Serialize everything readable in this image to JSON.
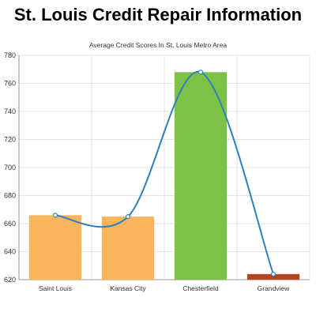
{
  "page": {
    "title": "St. Louis Credit Repair Information"
  },
  "chart_data": {
    "type": "bar",
    "title": "Average Credit Scores In St. Louis Metro Area",
    "xlabel": "",
    "ylabel": "",
    "categories": [
      "Saint Louis",
      "Kansas City",
      "Chesterfield",
      "Grandview"
    ],
    "values": [
      666,
      665,
      768,
      624
    ],
    "bar_colors": [
      "#f9b55c",
      "#f9b55c",
      "#7dc146",
      "#b5431f"
    ],
    "overlay_line": {
      "type": "spline",
      "color": "#2f80c0",
      "values": [
        666,
        665,
        768,
        624
      ]
    },
    "ylim": [
      620,
      780
    ],
    "yticks": [
      620,
      640,
      660,
      680,
      700,
      720,
      740,
      760,
      780
    ],
    "grid": true,
    "legend": "none"
  }
}
